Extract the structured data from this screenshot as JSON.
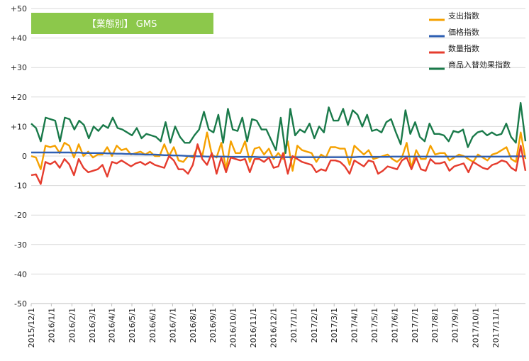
{
  "chart_data": {
    "type": "line",
    "title": "【業態別】 GMS",
    "title_bg": "#8CC84B",
    "yticks": [
      "+50",
      "+40",
      "+30",
      "+20",
      "+10",
      "0",
      "-10",
      "-20",
      "-30",
      "-40",
      "-50"
    ],
    "ylim": [
      -50,
      50
    ],
    "xlim": [
      0,
      108
    ],
    "xtick_labels": [
      "2015/12/1",
      "2016/1/1",
      "2016/2/1",
      "2016/3/1",
      "2016/4/1",
      "2016/5/1",
      "2016/6/1",
      "2016/7/1",
      "2016/8/1",
      "2016/9/1",
      "2016/10/1",
      "2016/11/1",
      "2016/12/1",
      "2017/1/1",
      "2017/2/1",
      "2017/3/1",
      "2017/4/1",
      "2017/5/1",
      "2017/6/1",
      "2017/7/1",
      "2017/8/1",
      "2017/9/1",
      "2017/10/1",
      "2017/11/1"
    ],
    "xtick_positions": [
      0,
      4.4,
      8.9,
      13.3,
      17.6,
      22.0,
      26.5,
      30.9,
      35.3,
      39.7,
      44.1,
      48.5,
      52.9,
      57.3,
      61.8,
      66.2,
      70.6,
      75.0,
      79.4,
      83.8,
      88.2,
      92.6,
      97.1,
      101.5
    ],
    "grid": true,
    "legend_position": "top-right",
    "series": [
      {
        "name": "支出指数",
        "color": "#F5A100",
        "values": [
          0,
          -0.5,
          -4.5,
          3.5,
          3,
          3.5,
          1,
          4.5,
          3.5,
          -0.5,
          4,
          0,
          1.5,
          -0.5,
          0.5,
          0.5,
          3,
          0,
          3.5,
          2,
          2.5,
          0.5,
          1,
          1.5,
          0.5,
          1.5,
          0,
          0,
          4,
          0,
          3,
          -1.5,
          -2,
          0,
          -0.5,
          3,
          0,
          8,
          0.5,
          -0.5,
          4.5,
          -4.5,
          5,
          1,
          1,
          5,
          -2,
          2.5,
          3,
          0.5,
          2.5,
          -1,
          1,
          -1,
          5,
          -5,
          3.5,
          2,
          1.5,
          1,
          -2,
          0.5,
          -0.5,
          3,
          3,
          2.5,
          2.5,
          -3,
          3.5,
          2,
          0.5,
          2,
          -1,
          -0.5,
          0,
          0.5,
          -1,
          -2,
          -0.5,
          4.5,
          -4,
          2,
          -1,
          -1,
          3.5,
          0.5,
          1,
          1,
          -1.5,
          -0.5,
          0.5,
          0,
          -1,
          -2,
          0.5,
          -0.5,
          -1.5,
          0.5,
          1,
          2,
          3,
          -1,
          -2,
          8,
          -1
        ]
      },
      {
        "name": "価格指数",
        "color": "#2E5FB3",
        "values": [
          1.2,
          1.2,
          1.2,
          1.2,
          1.2,
          1.2,
          1.2,
          1.2,
          1.2,
          1.1,
          1.2,
          1.0,
          1.0,
          1.0,
          1.0,
          1.0,
          0.9,
          0.9,
          0.8,
          0.8,
          0.7,
          0.7,
          0.6,
          0.6,
          0.5,
          0.5,
          0.5,
          0.4,
          0.3,
          0.3,
          0.2,
          0.2,
          0.1,
          0.0,
          0.0,
          -0.1,
          -0.1,
          -0.2,
          -0.2,
          -0.2,
          -0.2,
          -0.2,
          -0.3,
          -0.3,
          -0.3,
          -0.3,
          -0.3,
          -0.3,
          -0.4,
          -0.4,
          -0.4,
          -0.4,
          -0.4,
          -0.4,
          -0.4,
          -0.4,
          -0.4,
          -0.4,
          -0.4,
          -0.4,
          -0.4,
          -0.4,
          -0.4,
          -0.4,
          -0.4,
          -0.4,
          -0.4,
          -0.4,
          -0.4,
          -0.3,
          -0.3,
          -0.3,
          -0.3,
          -0.3,
          -0.3,
          -0.3,
          -0.2,
          -0.2,
          -0.2,
          -0.2,
          -0.2,
          -0.2,
          -0.2,
          -0.2,
          -0.2,
          -0.2,
          -0.2,
          -0.2,
          -0.2,
          -0.2,
          -0.2,
          -0.2,
          -0.2,
          -0.2,
          -0.2,
          -0.2,
          -0.2,
          -0.2,
          -0.2,
          -0.2,
          -0.2,
          -0.1,
          -0.1,
          -0.1,
          -0.1
        ]
      },
      {
        "name": "数量指数",
        "color": "#E53C2E",
        "values": [
          -6.5,
          -6.2,
          -9.5,
          -2,
          -2.8,
          -1.8,
          -4,
          -1,
          -2.8,
          -6.5,
          -1,
          -4,
          -5.5,
          -5,
          -4.5,
          -3,
          -7,
          -2,
          -2.5,
          -1.5,
          -2.5,
          -3.5,
          -2.5,
          -2,
          -3,
          -2,
          -3,
          -3.5,
          -4,
          0,
          -1.5,
          -4.5,
          -4.5,
          -6,
          -3,
          4,
          -1,
          -3,
          1,
          -6,
          -0.5,
          -5.5,
          -0.5,
          -1,
          -1.5,
          -1,
          -5.5,
          -1,
          -1,
          -2,
          -0.5,
          -4,
          -3.5,
          1,
          -6,
          0,
          -1,
          -2,
          -2.5,
          -3,
          -5.5,
          -4.5,
          -5,
          -1.5,
          -1.5,
          -2,
          -3.5,
          -6,
          -1.5,
          -2.5,
          -3.5,
          -1.5,
          -2,
          -6,
          -5,
          -3.5,
          -4,
          -4.5,
          -1.5,
          -0.5,
          -4.5,
          -0.5,
          -4.5,
          -5,
          -1,
          -2.5,
          -2.5,
          -2,
          -5,
          -3.5,
          -3,
          -2.5,
          -5.5,
          -2,
          -3,
          -4,
          -4.5,
          -3,
          -2.5,
          -1.5,
          -2,
          -4,
          -5,
          3.5,
          -5
        ]
      },
      {
        "name": "商品入替効果指数",
        "color": "#1A7A4A",
        "values": [
          11,
          9.5,
          5,
          13,
          12.5,
          12,
          5,
          13,
          12.5,
          9,
          12,
          10.5,
          6,
          10,
          8.5,
          10.5,
          9.5,
          13,
          9.5,
          9,
          8,
          7,
          9.5,
          6,
          7.5,
          7,
          6.5,
          5,
          11.5,
          4.5,
          10,
          6.5,
          4.5,
          4.5,
          7,
          9,
          15,
          9,
          8,
          14,
          4.5,
          16,
          9,
          8.5,
          13,
          5,
          12.5,
          12,
          9,
          9,
          5.5,
          2,
          13,
          1,
          16,
          7,
          9,
          8,
          11,
          6,
          10,
          8,
          16.5,
          12,
          12,
          16,
          10.5,
          15.5,
          14,
          10,
          14,
          8.5,
          9,
          8,
          11.5,
          12.5,
          8,
          4,
          15.5,
          7.5,
          11.5,
          6.5,
          5,
          11,
          7.5,
          7.5,
          7,
          5,
          8.5,
          8,
          9,
          3,
          6.5,
          8,
          8.5,
          7,
          8,
          7,
          7.5,
          11,
          6.5,
          4.5,
          18,
          5
        ]
      }
    ]
  }
}
